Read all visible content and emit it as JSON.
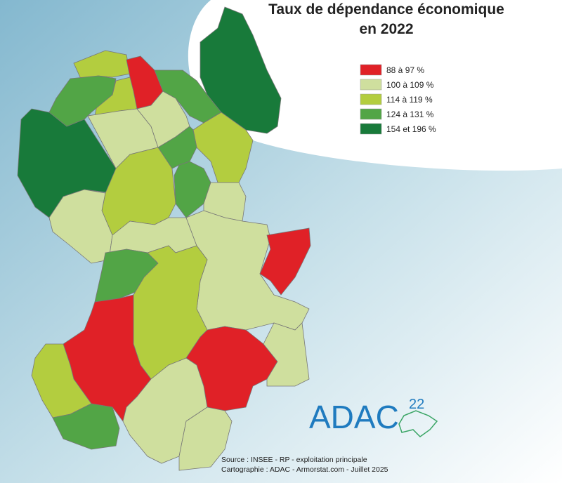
{
  "title": {
    "lines": [
      "Taux de dépendance économique",
      "en 2022"
    ]
  },
  "legend": {
    "items": [
      {
        "label": "88 à 97 %",
        "color": "#e02127"
      },
      {
        "label": "100 à 109 %",
        "color": "#cfdf9e"
      },
      {
        "label": "114 à 119 %",
        "color": "#b3cd3f"
      },
      {
        "label": "124 à 131 %",
        "color": "#52a546"
      },
      {
        "label": "154 et 196 %",
        "color": "#187a3a"
      }
    ]
  },
  "source": [
    "Source : INSEE - RP - exploitation principale",
    "Cartographie : ADAC - Armorstat.com - Juillet 2025"
  ],
  "logo": {
    "text": "ADAC",
    "number": "22"
  }
}
